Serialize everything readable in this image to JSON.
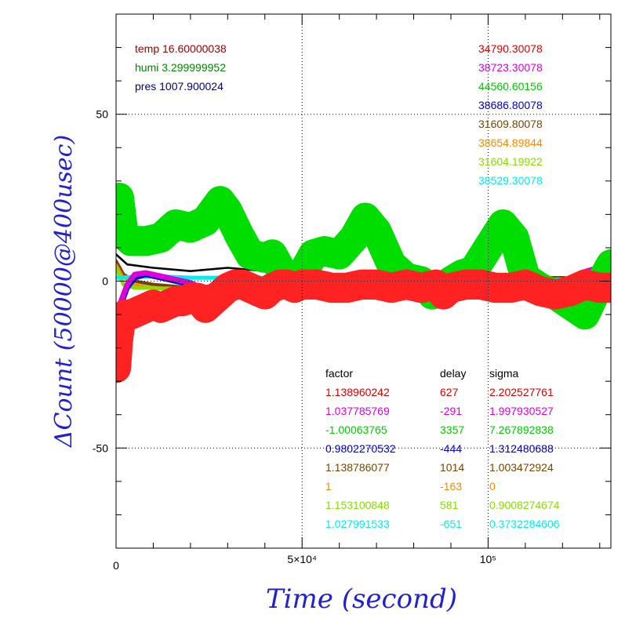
{
  "chart_data": {
    "type": "line",
    "title": "",
    "xlabel": "Time (second)",
    "ylabel": "ΔCount (50000@400usec)",
    "xlim": [
      0,
      133000
    ],
    "ylim": [
      -80,
      80
    ],
    "x_ticks": [
      {
        "value": 0,
        "label": "0"
      },
      {
        "value": 50000,
        "label": "5×10⁴"
      },
      {
        "value": 100000,
        "label": "10⁵"
      }
    ],
    "y_ticks": [
      {
        "value": -50,
        "label": "-50"
      },
      {
        "value": 0,
        "label": "0"
      },
      {
        "value": 50,
        "label": "50"
      }
    ],
    "grid": "dotted at major ticks",
    "env_readout": [
      {
        "text": "temp 16.60000038",
        "color": "#990000"
      },
      {
        "text": "humi 3.299999952",
        "color": "#008800"
      },
      {
        "text": "pres 1007.900024",
        "color": "#000077"
      }
    ],
    "legend_values": [
      {
        "text": "34790.30078",
        "color": "#dd0000"
      },
      {
        "text": "38723.30078",
        "color": "#dd00dd"
      },
      {
        "text": "44560.60156",
        "color": "#00cc00"
      },
      {
        "text": "38686.80078",
        "color": "#0000cc"
      },
      {
        "text": "31609.80078",
        "color": "#774400"
      },
      {
        "text": "38654.89844",
        "color": "#ff8800"
      },
      {
        "text": "31604.19922",
        "color": "#88dd00"
      },
      {
        "text": "38529.30078",
        "color": "#00eeee"
      }
    ],
    "table": {
      "headers": [
        "factor",
        "delay",
        "sigma"
      ],
      "rows": [
        {
          "factor": "1.138960242",
          "delay": "627",
          "sigma": "2.202527761",
          "color": "#dd0000"
        },
        {
          "factor": "1.037785769",
          "delay": "-291",
          "sigma": "1.997930527",
          "color": "#dd00dd"
        },
        {
          "factor": "-1.00063765",
          "delay": "3357",
          "sigma": "7.267892838",
          "color": "#00cc00"
        },
        {
          "factor": "0.9802270532",
          "delay": "-444",
          "sigma": "1.312480688",
          "color": "#0000cc"
        },
        {
          "factor": "1.138786077",
          "delay": "1014",
          "sigma": "1.003472924",
          "color": "#774400"
        },
        {
          "factor": "1",
          "delay": "-163",
          "sigma": "0",
          "color": "#ff8800"
        },
        {
          "factor": "1.153100848",
          "delay": "581",
          "sigma": "0.9008274674",
          "color": "#88dd00"
        },
        {
          "factor": "1.027991533",
          "delay": "-651",
          "sigma": "0.3732284606",
          "color": "#00eeee"
        }
      ]
    },
    "series": [
      {
        "color": "#000000",
        "band": 0.3,
        "x": [
          0,
          3000,
          10000,
          20000,
          30000,
          40000,
          50000,
          60000,
          70000,
          80000,
          90000,
          100000,
          110000,
          120000,
          133000
        ],
        "y": [
          8,
          5,
          4,
          3,
          4,
          3,
          3,
          1,
          0,
          -1,
          1,
          2,
          0,
          -1,
          -2
        ]
      },
      {
        "color": "#774400",
        "band": 0.5,
        "x": [
          0,
          2000,
          5000,
          10000,
          20000,
          30000,
          40000,
          50000,
          60000,
          70000,
          80000,
          90000,
          100000,
          110000,
          120000,
          133000
        ],
        "y": [
          6,
          2,
          0,
          -1,
          -2,
          -1,
          -1,
          0,
          -1,
          0,
          0,
          1,
          0,
          1,
          1,
          0
        ]
      },
      {
        "color": "#ff8800",
        "band": 0.4,
        "x": [
          0,
          2000,
          5000,
          10000,
          20000,
          30000,
          40000,
          50000,
          60000,
          70000,
          80000,
          90000,
          100000,
          110000,
          120000,
          133000
        ],
        "y": [
          5,
          1,
          -1,
          -2,
          -2,
          -1,
          -1,
          0,
          -1,
          0,
          0,
          0,
          0,
          1,
          0,
          0
        ]
      },
      {
        "color": "#88dd00",
        "band": 0.6,
        "x": [
          0,
          2000,
          5000,
          10000,
          20000,
          30000,
          40000,
          50000,
          60000,
          70000,
          80000,
          90000,
          100000,
          110000,
          120000,
          133000
        ],
        "y": [
          4,
          -1,
          -2,
          -2,
          -3,
          -2,
          -1,
          -1,
          -2,
          -1,
          -1,
          0,
          -1,
          0,
          0,
          -1
        ]
      },
      {
        "color": "#00eeee",
        "band": 0.6,
        "x": [
          0,
          10000,
          20000,
          30000,
          40000,
          50000,
          60000,
          70000,
          80000,
          90000,
          100000,
          110000,
          120000,
          133000
        ],
        "y": [
          1,
          1.5,
          1,
          1,
          1,
          0.5,
          0.5,
          0.5,
          0.5,
          0.5,
          0.5,
          0.5,
          0.5,
          0.5
        ]
      },
      {
        "color": "#0000cc",
        "band": 0.8,
        "x": [
          0,
          1000,
          3000,
          5000,
          8000,
          12000,
          16000,
          20000,
          24000,
          27000,
          30000,
          34000,
          40000,
          45000,
          50000,
          55000,
          60000,
          65000,
          70000,
          75000,
          80000,
          85000,
          90000,
          95000,
          100000,
          105000,
          110000,
          115000,
          120000,
          125000,
          128000,
          133000
        ],
        "y": [
          -16,
          -8,
          -2,
          1,
          2,
          1,
          0,
          -1,
          -3,
          -1,
          1,
          0,
          -1,
          0,
          2,
          0,
          -2,
          0,
          2,
          0,
          -2,
          0,
          2,
          0,
          -1,
          1,
          2,
          0,
          -2,
          2,
          3,
          1
        ]
      },
      {
        "color": "#dd00dd",
        "band": 0.8,
        "x": [
          0,
          1000,
          3000,
          5000,
          8000,
          12000,
          16000,
          20000,
          24000,
          27000,
          30000,
          34000,
          40000,
          45000,
          50000,
          55000,
          60000,
          65000,
          70000,
          75000,
          80000,
          85000,
          90000,
          95000,
          100000,
          105000,
          110000,
          115000,
          120000,
          125000,
          128000,
          133000
        ],
        "y": [
          -15,
          -7,
          -1,
          2,
          2.5,
          1.5,
          0.5,
          -0.5,
          -2.5,
          -0.5,
          1.5,
          0.5,
          -0.5,
          0.5,
          2.5,
          0.5,
          -1.5,
          0.5,
          2.5,
          0.5,
          -1.5,
          0.5,
          3,
          0.5,
          -0.5,
          1.5,
          3,
          0.5,
          -1.5,
          2.5,
          3.5,
          1.5
        ]
      },
      {
        "color": "#00dd00",
        "band": 4.5,
        "x": [
          0,
          800,
          2000,
          4000,
          8000,
          12000,
          16000,
          20000,
          24000,
          28000,
          30000,
          33000,
          36000,
          40000,
          42000,
          44000,
          46000,
          48000,
          50000,
          53000,
          56000,
          60000,
          64000,
          67000,
          70000,
          74000,
          78000,
          82000,
          85000,
          88000,
          90000,
          93000,
          96000,
          100000,
          104000,
          107000,
          110000,
          114000,
          118000,
          122000,
          126000,
          129000,
          133000
        ],
        "y": [
          18,
          25,
          14,
          12,
          12,
          13,
          17,
          16,
          18,
          24,
          21,
          14,
          8,
          7,
          8,
          4,
          -1,
          -1,
          2,
          8,
          9,
          8,
          13,
          19,
          15,
          5,
          1,
          0,
          -4,
          -3,
          0,
          2,
          3,
          10,
          17,
          13,
          1,
          -2,
          -4,
          -7,
          -10,
          -3,
          5
        ]
      },
      {
        "color": "#ff2222",
        "band": 4.5,
        "x": [
          0,
          500,
          1200,
          2500,
          4000,
          6000,
          8000,
          10000,
          12000,
          14000,
          16000,
          18000,
          20000,
          22000,
          24000,
          26000,
          28000,
          30000,
          32000,
          34000,
          36000,
          38000,
          40000,
          42000,
          44000,
          46000,
          48000,
          50000,
          54000,
          58000,
          62000,
          66000,
          70000,
          74000,
          78000,
          82000,
          86000,
          88000,
          90000,
          94000,
          98000,
          102000,
          106000,
          110000,
          114000,
          118000,
          122000,
          126000,
          130000,
          133000
        ],
        "y": [
          -26,
          -18,
          -12,
          -10,
          -10,
          -9,
          -8,
          -7,
          -8,
          -7,
          -6,
          -6,
          -5,
          -5,
          -8,
          -6,
          -4,
          -2,
          -1,
          -1,
          -2,
          -3,
          -4,
          -2,
          -1,
          -1,
          -2,
          -1,
          -1,
          -2,
          -2,
          -1,
          -1,
          -2,
          -1,
          -2,
          -1,
          -4,
          -2,
          -1,
          -1,
          -2,
          -2,
          -1,
          -3,
          -4,
          -3,
          -1,
          -2,
          -2
        ]
      }
    ]
  }
}
